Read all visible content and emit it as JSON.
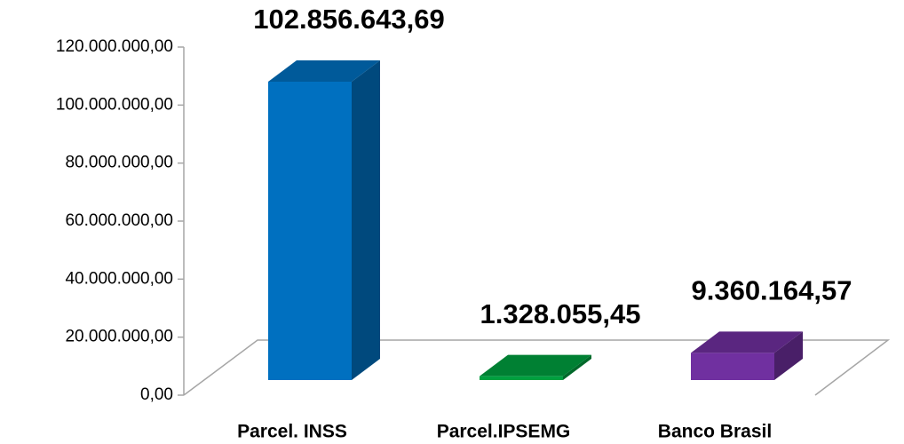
{
  "chart_data": {
    "type": "bar3d",
    "categories": [
      "Parcel. INSS",
      "Parcel.IPSEMG",
      "Banco Brasil"
    ],
    "values": [
      102856643.69,
      1328055.45,
      9360164.57
    ],
    "value_labels": [
      "102.856.643,69",
      "1.328.055,45",
      "9.360.164,57"
    ],
    "colors": [
      "#0070c0",
      "#00a040",
      "#7030a0"
    ],
    "ylim": [
      0,
      120000000
    ],
    "yticks": [
      {
        "value": 0,
        "label": "0,00"
      },
      {
        "value": 20000000,
        "label": "20.000.000,00"
      },
      {
        "value": 40000000,
        "label": "40.000.000,00"
      },
      {
        "value": 60000000,
        "label": "60.000.000,00"
      },
      {
        "value": 80000000,
        "label": "80.000.000,00"
      },
      {
        "value": 100000000,
        "label": "100.000.000,00"
      },
      {
        "value": 120000000,
        "label": "120.000.000,00"
      }
    ]
  }
}
